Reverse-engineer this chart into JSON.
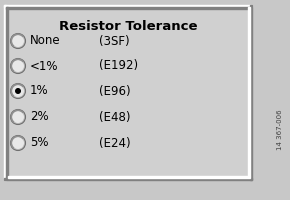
{
  "title": "Resistor Tolerance",
  "options": [
    {
      "label": "None",
      "suffix": "(3SF)",
      "selected": false
    },
    {
      "label": "<1%",
      "suffix": "(E192)",
      "selected": false
    },
    {
      "label": "1%",
      "suffix": "(E96)",
      "selected": true
    },
    {
      "label": "2%",
      "suffix": "(E48)",
      "selected": false
    },
    {
      "label": "5%",
      "suffix": "(E24)",
      "selected": false
    }
  ],
  "bg_color": "#c8c8c8",
  "panel_color": "#d0d0d0",
  "text_color": "#000000",
  "title_fontsize": 9.5,
  "label_fontsize": 8.5,
  "side_label": "14 367-006",
  "figw": 2.9,
  "figh": 2.0,
  "dpi": 100
}
